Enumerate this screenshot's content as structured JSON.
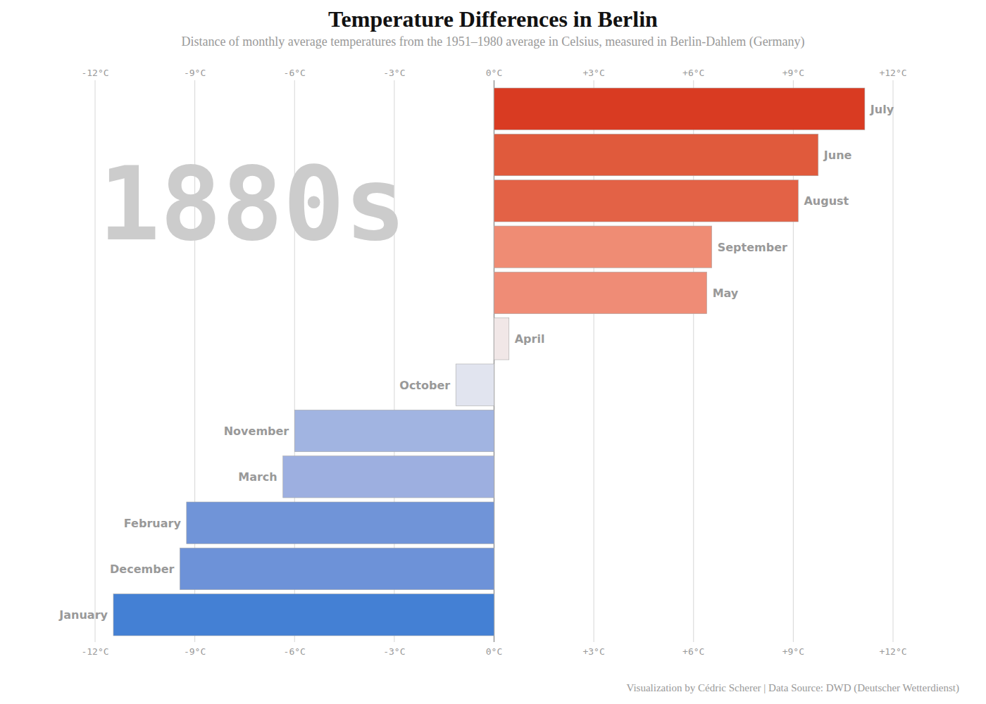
{
  "chart_data": {
    "type": "bar",
    "orientation": "horizontal",
    "title": "Temperature Differences in Berlin",
    "subtitle": "Distance of monthly average temperatures from the 1951–1980 average in Celsius, measured in Berlin-Dahlem (Germany)",
    "annotation": "1880s",
    "caption": "Visualization by Cédric Scherer  |  Data Source: DWD (Deutscher Wetterdienst)",
    "categories": [
      "July",
      "June",
      "August",
      "September",
      "May",
      "April",
      "October",
      "November",
      "March",
      "February",
      "December",
      "January"
    ],
    "values": [
      11.15,
      9.75,
      9.15,
      6.55,
      6.4,
      0.45,
      -1.15,
      -6.0,
      -6.35,
      -9.25,
      -9.45,
      -11.45
    ],
    "colors": [
      "#d93b22",
      "#e05a3c",
      "#e36246",
      "#ef8c74",
      "#ef8c76",
      "#f1e7e7",
      "#e1e4ef",
      "#a1b4e1",
      "#9dafe0",
      "#7094d8",
      "#6d92d8",
      "#4480d4"
    ],
    "xlim": [
      -12,
      12
    ],
    "xticks": [
      {
        "value": -12,
        "label": "-12°C"
      },
      {
        "value": -9,
        "label": "-9°C"
      },
      {
        "value": -6,
        "label": "-6°C"
      },
      {
        "value": -3,
        "label": "-3°C"
      },
      {
        "value": 0,
        "label": "0°C"
      },
      {
        "value": 3,
        "label": "+3°C"
      },
      {
        "value": 6,
        "label": "+6°C"
      },
      {
        "value": 9,
        "label": "+9°C"
      },
      {
        "value": 12,
        "label": "+12°C"
      }
    ],
    "grid": true
  }
}
